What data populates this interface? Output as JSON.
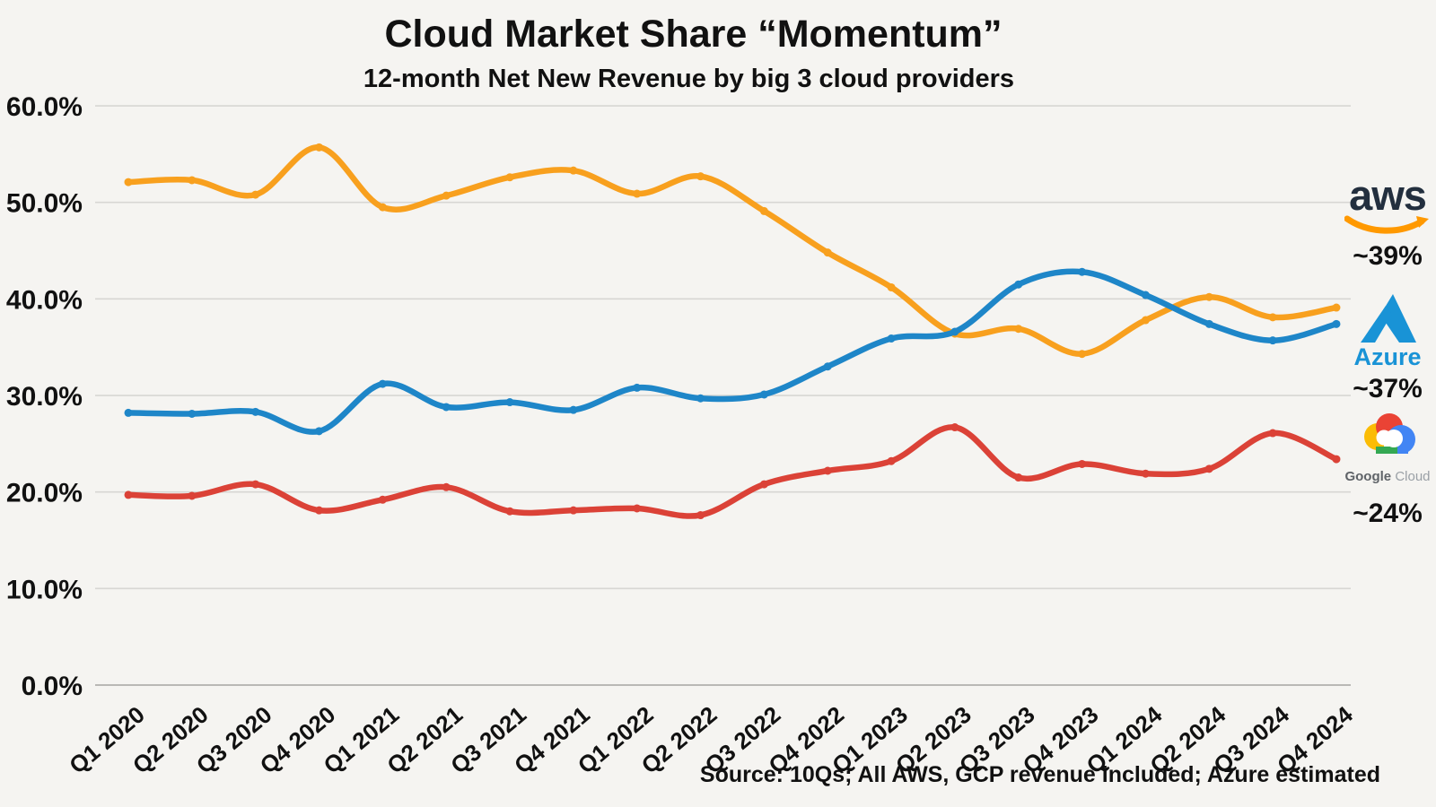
{
  "title": "Cloud Market Share “Momentum”",
  "subtitle": "12-month Net New Revenue by big 3 cloud providers",
  "source_note": "Source: 10Qs; All AWS, GCP revenue included; Azure estimated",
  "legend": {
    "aws": {
      "logo_text": "aws",
      "share_label": "~39%",
      "brand_color": "#232F3E",
      "swoosh_color": "#FF9900"
    },
    "azure": {
      "logo_text": "Azure",
      "share_label": "~37%",
      "brand_color": "#1993D6"
    },
    "gcp": {
      "logo_text_1": "Google",
      "logo_text_2": "Cloud",
      "share_label": "~24%",
      "brand_colors": {
        "blue": "#4285F4",
        "red": "#EA4335",
        "yellow": "#FBBC05",
        "green": "#34A853"
      }
    }
  },
  "chart_data": {
    "type": "line",
    "categories": [
      "Q1 2020",
      "Q2 2020",
      "Q3 2020",
      "Q4 2020",
      "Q1 2021",
      "Q2 2021",
      "Q3 2021",
      "Q4 2021",
      "Q1 2022",
      "Q2 2022",
      "Q3 2022",
      "Q4 2022",
      "Q1 2023",
      "Q2 2023",
      "Q3 2023",
      "Q4 2023",
      "Q1 2024",
      "Q2 2024",
      "Q3 2024",
      "Q4 2024"
    ],
    "series": [
      {
        "name": "AWS",
        "color": "#F8A01E",
        "values": [
          52.1,
          52.3,
          50.8,
          55.7,
          49.5,
          50.7,
          52.6,
          53.3,
          50.9,
          52.7,
          49.1,
          44.8,
          41.2,
          36.4,
          36.9,
          34.3,
          37.8,
          40.2,
          38.1,
          39.1
        ]
      },
      {
        "name": "Azure",
        "color": "#1E86C8",
        "values": [
          28.2,
          28.1,
          28.3,
          26.3,
          31.2,
          28.8,
          29.3,
          28.5,
          30.8,
          29.7,
          30.1,
          33.0,
          35.9,
          36.6,
          41.5,
          42.8,
          40.4,
          37.4,
          35.7,
          37.4
        ]
      },
      {
        "name": "Google Cloud",
        "color": "#DB4237",
        "values": [
          19.7,
          19.6,
          20.8,
          18.1,
          19.2,
          20.5,
          18.0,
          18.1,
          18.3,
          17.6,
          20.8,
          22.2,
          23.2,
          26.7,
          21.5,
          22.9,
          21.9,
          22.4,
          26.1,
          23.4
        ]
      }
    ],
    "title": "Cloud Market Share “Momentum”",
    "xlabel": "",
    "ylabel": "",
    "yticks": [
      0,
      10,
      20,
      30,
      40,
      50,
      60
    ],
    "ytick_format": "percent_one_decimal",
    "ylim": [
      0,
      60
    ],
    "grid": true,
    "grid_color": "#d7d6d3",
    "legend_position": "right",
    "end_labels": {
      "AWS": "~39%",
      "Azure": "~37%",
      "Google Cloud": "~24%"
    }
  }
}
